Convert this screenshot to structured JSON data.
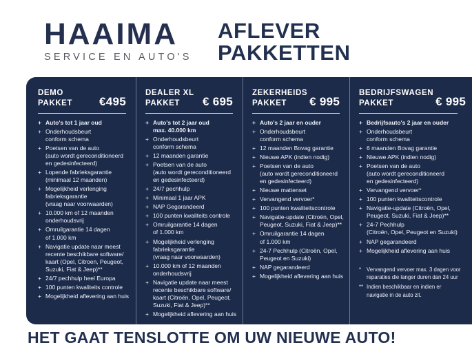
{
  "bullet": "+",
  "colors": {
    "panel_navy": "#1d2b4b",
    "text_navy": "#22304f",
    "subtitle_gray": "#55585f",
    "white": "#ffffff"
  },
  "logo": {
    "name": "HAAIMA",
    "subtitle": "SERVICE EN AUTO'S"
  },
  "header": {
    "title": "AFLEVER\nPAKKETTEN"
  },
  "packages": [
    {
      "name": "DEMO\nPAKKET",
      "price": "€495",
      "items": [
        "Auto's tot 1 jaar oud",
        "Onderhoudsbeurt\nconform schema",
        "Poetsen van de auto\n(auto wordt gereconditioneerd\nen gedesinfecteerd)",
        "Lopende fabrieksgarantie\n(minimaal 12 maanden)",
        "Mogelijkheid verlenging\nfabrieksgarantie\n(vraag naar voorwaarden)",
        "10.000 km of 12 maanden\nonderhoudsvrij",
        "Omruilgarantie 14 dagen\nof 1.000 km",
        "Navigatie update naar meest\nrecente beschikbare software/\nkaart (Opel, Citroen,  Peugeot,\nSuzuki, Fiat & Jeep)**",
        "24/7 pechhulp heel Europa",
        "100 punten kwaliteits controle",
        "Mogelijkheid aflevering aan huis"
      ]
    },
    {
      "name": "DEALER XL\nPAKKET",
      "price": "€ 695",
      "items": [
        "Auto's tot 2 jaar oud\nmax. 40.000 km",
        "Onderhoudsbeurt\nconform schema",
        "12 maanden garantie",
        "Poetsen van de auto\n(auto wordt gereconditioneerd\nen gedesinfecteerd)",
        "24/7 pechhulp",
        "Minimaal 1 jaar APK",
        "NAP Gegarandeerd",
        "100 punten kwaliteits controle",
        "Omruilgarantie 14 dagen\nof 1.000 km",
        "Mogelijkheid verlenging\nfabrieksgarantie\n(vraag naar voorwaarden)",
        "10.000 km of 12 maanden\nonderhoudsvrij",
        "Navigatie update naar meest\nrecente beschikbare software/\nkaart (Citroën, Opel, Peugeot,\nSuzuki, Fiat & Jeep)**",
        "Mogelijkheid aflevering aan huis"
      ]
    },
    {
      "name": "ZEKERHEIDS\nPAKKET",
      "price": "€ 995",
      "items": [
        "Auto's 2 jaar en ouder",
        "Onderhoudsbeurt\nconform schema",
        "12 maanden Bovag garantie",
        "Nieuwe APK (indien nodig)",
        "Poetsen van de auto\n(auto wordt gereconditioneerd\nen gedesinfecteerd)",
        "Nieuwe mattenset",
        "Vervangend vervoer*",
        "100 punten kwaliteitscontrole",
        "Navigatie-update (Citroën, Opel,\nPeugeot, Suzuki, Fiat & Jeep)**",
        "Omruilgarantie 14 dagen\nof 1.000 km",
        "24-7 Pechhulp (Citroën, Opel,\nPeugeot en Suzuki)",
        "NAP gegarandeerd",
        "Mogelijkheid aflevering aan huis"
      ]
    },
    {
      "name": "BEDRIJFSWAGEN\nPAKKET",
      "price": "€ 995",
      "items": [
        "Bedrijfsauto's 2 jaar en ouder",
        "Onderhoudsbeurt\nconform schema",
        "6 maanden Bovag garantie",
        "Nieuwe APK (indien nodig)",
        "Poetsen van de auto\n(auto wordt gereconditioneerd\nen gedesinfecteerd)",
        "Vervangend vervoer*",
        "100 punten kwaliteitscontrole",
        "Navigatie-update (Citroën, Opel,\nPeugeot, Suzuki, Fiat & Jeep)**",
        "24-7 Pechhulp\n(Citroën, Opel, Peugeot en Suzuki)",
        "NAP gegarandeerd",
        "Mogelijkheid aflevering aan huis"
      ]
    }
  ],
  "footnotes": [
    {
      "marker": "*",
      "text": "Vervangend vervoer max. 3 dagen voor\nreparaties die langer duren dan 24 uur"
    },
    {
      "marker": "**",
      "text": "Indien beschikbaar en indien er\nnavigatie in de auto zit."
    }
  ],
  "footer": {
    "tagline": "HET GAAT TENSLOTTE OM UW NIEUWE AUTO!"
  }
}
